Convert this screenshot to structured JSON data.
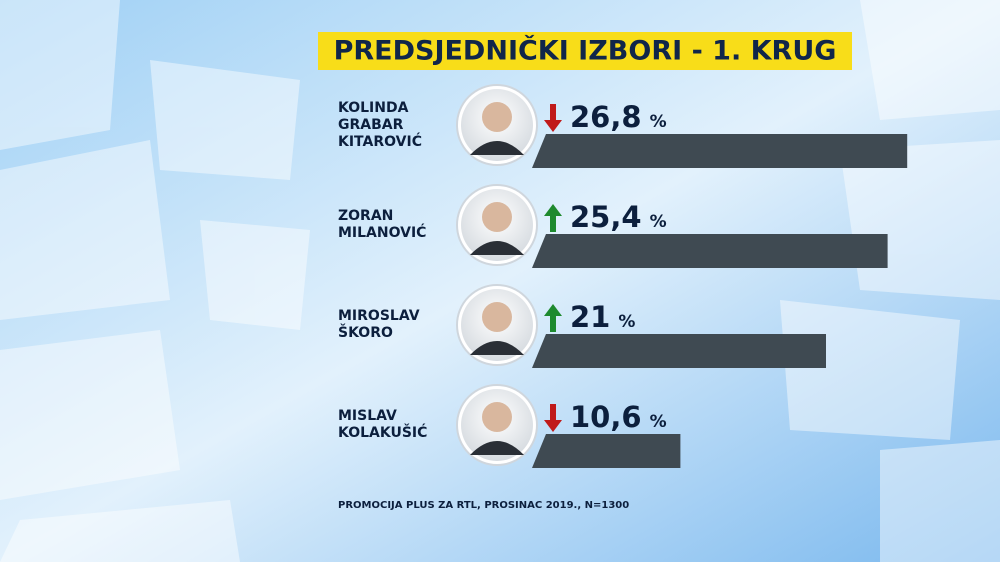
{
  "chart_data": {
    "type": "bar",
    "orientation": "horizontal",
    "title": "PREDSJEDNIČKI IZBORI - 1. KRUG",
    "categories": [
      "KOLINDA\nGRABAR\nKITAROVIĆ",
      "ZORAN\nMILANOVIĆ",
      "MIROSLAV\nŠKORO",
      "MISLAV\nKOLAKUŠIĆ"
    ],
    "values": [
      26.8,
      25.4,
      21,
      10.6
    ],
    "value_labels": [
      "26,8",
      "25,4",
      "21",
      "10,6"
    ],
    "unit": "%",
    "trends": [
      "down",
      "up",
      "up",
      "down"
    ],
    "color": "#3f4a52",
    "xlim": [
      0,
      28
    ],
    "source": "PROMOCIJA PLUS ZA RTL, PROSINAC 2019., N=1300"
  }
}
